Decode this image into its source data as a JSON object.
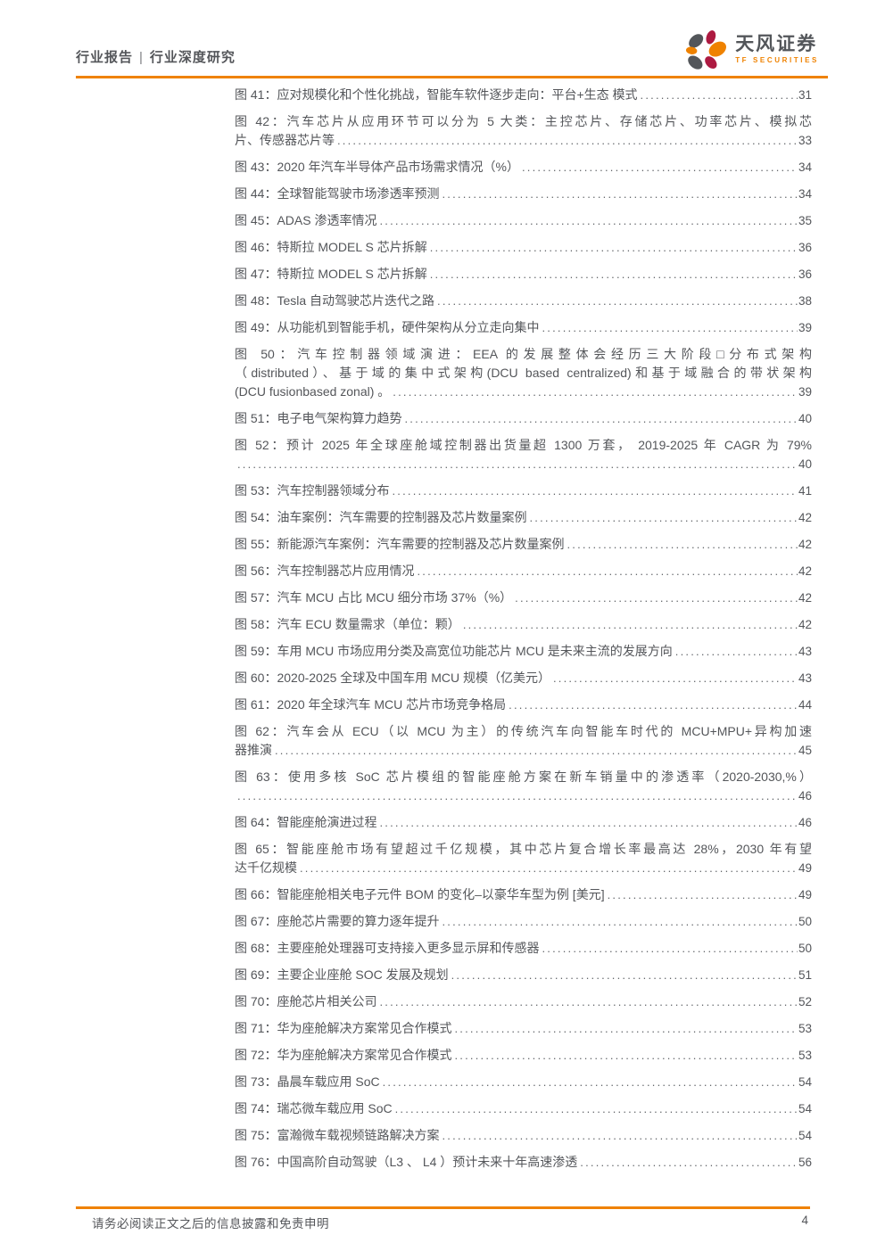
{
  "header": {
    "breadcrumb_left": "行业报告",
    "breadcrumb_sep": "|",
    "breadcrumb_right": "行业深度研究",
    "brand_cn": "天风证券",
    "brand_en": "TF SECURITIES"
  },
  "toc": {
    "entries": [
      {
        "lines": [
          "图 41：应对规模化和个性化挑战，智能车软件逐步走向：平台+生态 模式"
        ],
        "page": "31"
      },
      {
        "lines": [
          "图 42：汽车芯片从应用环节可以分为 5 大类：主控芯片、存储芯片、功率芯片、模拟芯",
          "片、传感器芯片等"
        ],
        "page": "33"
      },
      {
        "lines": [
          "图 43：2020 年汽车半导体产品市场需求情况（%）"
        ],
        "page": "34"
      },
      {
        "lines": [
          "图 44：全球智能驾驶市场渗透率预测"
        ],
        "page": "34"
      },
      {
        "lines": [
          "图 45：ADAS 渗透率情况"
        ],
        "page": "35"
      },
      {
        "lines": [
          "图 46：特斯拉 MODEL S 芯片拆解"
        ],
        "page": "36"
      },
      {
        "lines": [
          "图 47：特斯拉 MODEL S 芯片拆解"
        ],
        "page": "36"
      },
      {
        "lines": [
          "图 48：Tesla 自动驾驶芯片迭代之路"
        ],
        "page": "38"
      },
      {
        "lines": [
          "图 49：从功能机到智能手机，硬件架构从分立走向集中"
        ],
        "page": "39"
      },
      {
        "lines": [
          "图 50：汽车控制器领域演进：EEA 的发展整体会经历三大阶段□分布式架构",
          "（distributed）、基于域的集中式架构(DCU based centralized)和基于域融合的带状架构",
          "(DCU fusionbased zonal) 。"
        ],
        "page": "39"
      },
      {
        "lines": [
          "图 51：电子电气架构算力趋势"
        ],
        "page": "40"
      },
      {
        "lines": [
          "图 52：预计 2025 年全球座舱域控制器出货量超 1300 万套， 2019-2025 年 CAGR 为 79%",
          ""
        ],
        "page": "40"
      },
      {
        "lines": [
          "图 53：汽车控制器领域分布"
        ],
        "page": "41"
      },
      {
        "lines": [
          "图 54：油车案例：汽车需要的控制器及芯片数量案例"
        ],
        "page": "42"
      },
      {
        "lines": [
          "图 55：新能源汽车案例：汽车需要的控制器及芯片数量案例"
        ],
        "page": "42"
      },
      {
        "lines": [
          "图 56：汽车控制器芯片应用情况"
        ],
        "page": "42"
      },
      {
        "lines": [
          "图 57：汽车 MCU 占比 MCU 细分市场 37%（%）"
        ],
        "page": "42"
      },
      {
        "lines": [
          "图 58：汽车 ECU 数量需求（单位：颗）"
        ],
        "page": "42"
      },
      {
        "lines": [
          "图 59：车用 MCU 市场应用分类及高宽位功能芯片 MCU 是未来主流的发展方向"
        ],
        "page": "43"
      },
      {
        "lines": [
          "图 60：2020-2025 全球及中国车用 MCU 规模（亿美元）"
        ],
        "page": "43"
      },
      {
        "lines": [
          "图 61：2020 年全球汽车 MCU 芯片市场竞争格局"
        ],
        "page": "44"
      },
      {
        "lines": [
          "图 62：汽车会从 ECU（以 MCU 为主）的传统汽车向智能车时代的 MCU+MPU+异构加速",
          "器推演"
        ],
        "page": "45"
      },
      {
        "lines": [
          "图 63：使用多核 SoC 芯片模组的智能座舱方案在新车销量中的渗透率（2020-2030,%）",
          ""
        ],
        "page": "46"
      },
      {
        "lines": [
          "图 64：智能座舱演进过程"
        ],
        "page": "46"
      },
      {
        "lines": [
          "图 65：智能座舱市场有望超过千亿规模，其中芯片复合增长率最高达 28%，2030 年有望",
          "达千亿规模"
        ],
        "page": "49"
      },
      {
        "lines": [
          "图 66：智能座舱相关电子元件 BOM 的变化–以豪华车型为例 [美元]"
        ],
        "page": "49"
      },
      {
        "lines": [
          "图 67：座舱芯片需要的算力逐年提升"
        ],
        "page": "50"
      },
      {
        "lines": [
          "图 68：主要座舱处理器可支持接入更多显示屏和传感器"
        ],
        "page": "50"
      },
      {
        "lines": [
          "图 69：主要企业座舱 SOC 发展及规划"
        ],
        "page": "51"
      },
      {
        "lines": [
          "图 70：座舱芯片相关公司"
        ],
        "page": "52"
      },
      {
        "lines": [
          "图 71：华为座舱解决方案常见合作模式"
        ],
        "page": "53"
      },
      {
        "lines": [
          "图 72：华为座舱解决方案常见合作模式"
        ],
        "page": "53"
      },
      {
        "lines": [
          "图 73：晶晨车载应用 SoC"
        ],
        "page": "54"
      },
      {
        "lines": [
          "图 74：瑞芯微车载应用 SoC"
        ],
        "page": "54"
      },
      {
        "lines": [
          "图 75：富瀚微车载视频链路解决方案"
        ],
        "page": "54"
      },
      {
        "lines": [
          "图 76：中国高阶自动驾驶（L3 、 L4 ）预计未来十年高速渗透"
        ],
        "page": "56"
      }
    ]
  },
  "footer": {
    "disclaimer": "请务必阅读正文之后的信息披露和免责申明",
    "page_number": "4"
  },
  "colors": {
    "accent_orange": "#ef8200",
    "text_gray": "#54565a",
    "logo_crimson": "#ad1a41",
    "logo_gray": "#53565a"
  }
}
